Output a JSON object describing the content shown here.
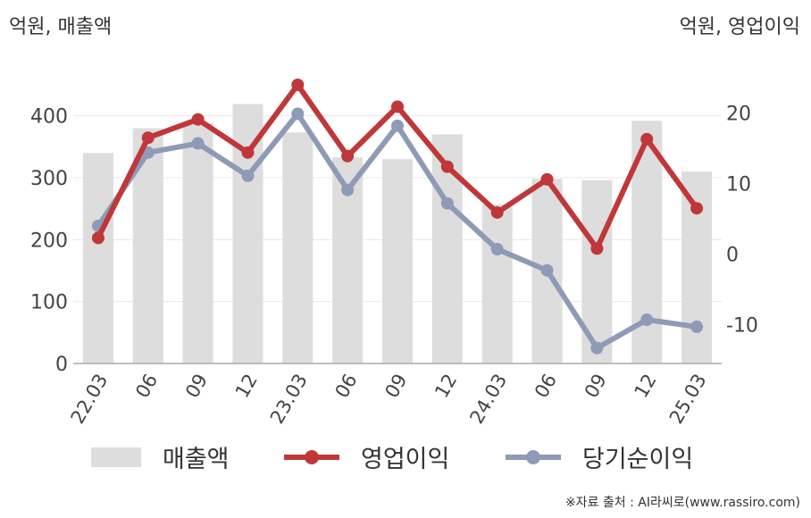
{
  "units": {
    "left": "억원, 매출액",
    "right": "억원, 영업이익"
  },
  "source": "※자료 출처 : AI라씨로(www.rassiro.com)",
  "colors": {
    "bar": "#dddddd",
    "operating": "#c0373a",
    "net": "#8e9bb6",
    "grid": "#e8e8e8",
    "axis": "#aaaaaa"
  },
  "chart_data": {
    "type": "bar+line",
    "categories": [
      "22.03",
      "06",
      "09",
      "12",
      "23.03",
      "06",
      "09",
      "12",
      "24.03",
      "06",
      "09",
      "12",
      "25.03"
    ],
    "left_axis": {
      "ylim": [
        0,
        450
      ],
      "ticks": [
        0,
        100,
        200,
        300,
        400
      ]
    },
    "right_axis": {
      "ylim": [
        -15.5,
        24
      ],
      "ticks": [
        -10,
        0,
        10,
        20
      ]
    },
    "series": [
      {
        "name": "매출액",
        "type": "bar",
        "axis": "left",
        "values": [
          340,
          380,
          388,
          419,
          373,
          333,
          330,
          370,
          257,
          298,
          296,
          392,
          310
        ]
      },
      {
        "name": "영업이익",
        "type": "line",
        "axis": "right",
        "values": [
          2.3,
          16.5,
          19.1,
          14.4,
          24.0,
          13.9,
          20.9,
          12.4,
          5.9,
          10.6,
          0.8,
          16.3,
          6.5
        ]
      },
      {
        "name": "당기순이익",
        "type": "line",
        "axis": "right",
        "values": [
          4.0,
          14.4,
          15.7,
          11.1,
          19.9,
          9.1,
          18.2,
          7.2,
          0.7,
          -2.3,
          -13.3,
          -9.3,
          -10.3
        ]
      }
    ],
    "grid": true,
    "legend": "bottom"
  }
}
